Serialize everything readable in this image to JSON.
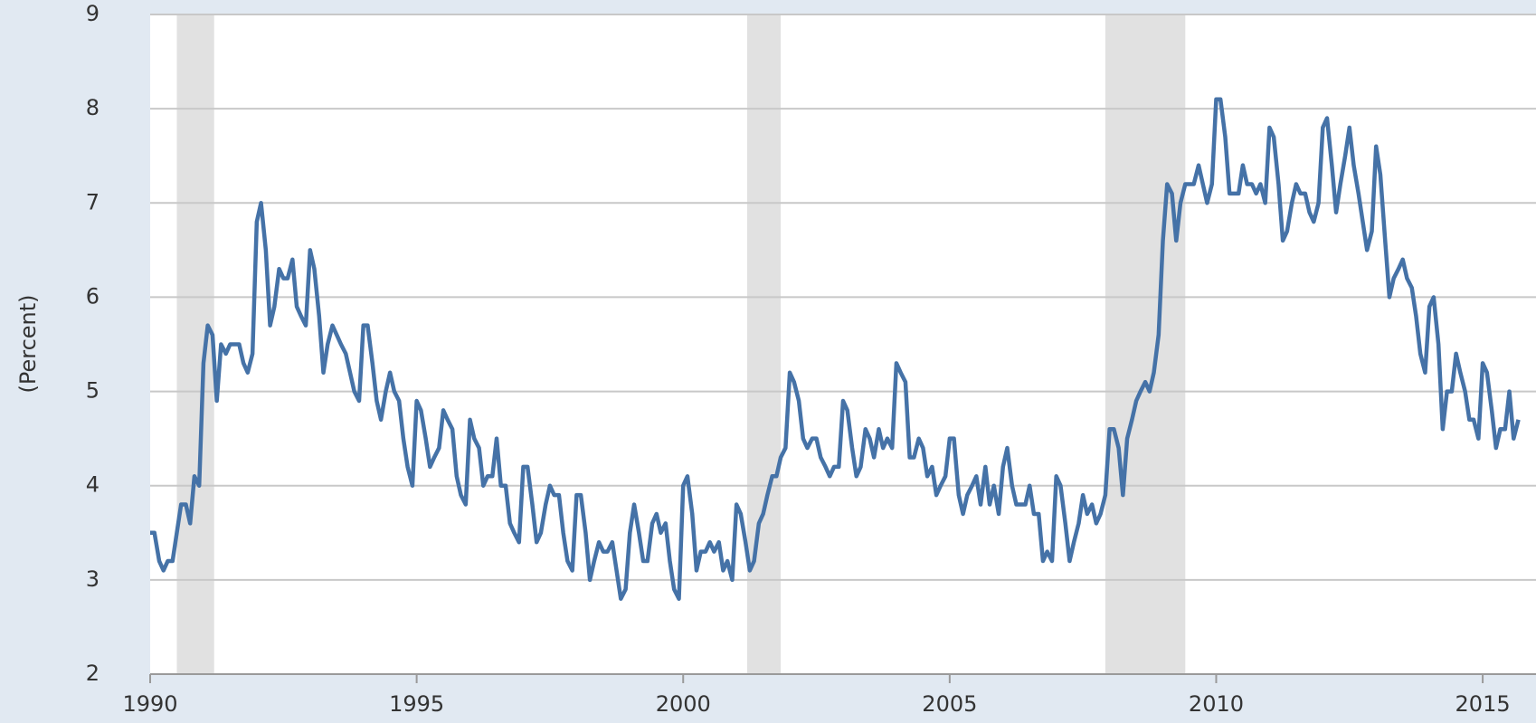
{
  "chart_data": {
    "type": "line",
    "ylabel": "(Percent)",
    "xlim": [
      1990,
      2016
    ],
    "xticks": [
      1990,
      1995,
      2000,
      2005,
      2010,
      2015
    ],
    "ylim": [
      2,
      9
    ],
    "yticks": [
      2,
      3,
      4,
      5,
      6,
      7,
      8,
      9
    ],
    "grid": true,
    "recessions": [
      [
        1990.5,
        1991.2
      ],
      [
        2001.2,
        2001.83
      ],
      [
        2007.92,
        2009.42
      ]
    ],
    "recession_color": "#e1e1e1",
    "series": [
      {
        "color": "#4572a7",
        "x": [
          1990.0,
          1990.08,
          1990.17,
          1990.25,
          1990.33,
          1990.42,
          1990.5,
          1990.58,
          1990.67,
          1990.75,
          1990.83,
          1990.92,
          1991.0,
          1991.08,
          1991.17,
          1991.25,
          1991.33,
          1991.42,
          1991.5,
          1991.58,
          1991.67,
          1991.75,
          1991.83,
          1991.92,
          1992.0,
          1992.08,
          1992.17,
          1992.25,
          1992.33,
          1992.42,
          1992.5,
          1992.58,
          1992.67,
          1992.75,
          1992.83,
          1992.92,
          1993.0,
          1993.08,
          1993.17,
          1993.25,
          1993.33,
          1993.42,
          1993.5,
          1993.58,
          1993.67,
          1993.75,
          1993.83,
          1993.92,
          1994.0,
          1994.08,
          1994.17,
          1994.25,
          1994.33,
          1994.42,
          1994.5,
          1994.58,
          1994.67,
          1994.75,
          1994.83,
          1994.92,
          1995.0,
          1995.08,
          1995.17,
          1995.25,
          1995.33,
          1995.42,
          1995.5,
          1995.58,
          1995.67,
          1995.75,
          1995.83,
          1995.92,
          1996.0,
          1996.08,
          1996.17,
          1996.25,
          1996.33,
          1996.42,
          1996.5,
          1996.58,
          1996.67,
          1996.75,
          1996.83,
          1996.92,
          1997.0,
          1997.08,
          1997.17,
          1997.25,
          1997.33,
          1997.42,
          1997.5,
          1997.58,
          1997.67,
          1997.75,
          1997.83,
          1997.92,
          1998.0,
          1998.08,
          1998.17,
          1998.25,
          1998.33,
          1998.42,
          1998.5,
          1998.58,
          1998.67,
          1998.75,
          1998.83,
          1998.92,
          1999.0,
          1999.08,
          1999.17,
          1999.25,
          1999.33,
          1999.42,
          1999.5,
          1999.58,
          1999.67,
          1999.75,
          1999.83,
          1999.92,
          2000.0,
          2000.08,
          2000.17,
          2000.25,
          2000.33,
          2000.42,
          2000.5,
          2000.58,
          2000.67,
          2000.75,
          2000.83,
          2000.92,
          2001.0,
          2001.08,
          2001.17,
          2001.25,
          2001.33,
          2001.42,
          2001.5,
          2001.58,
          2001.67,
          2001.75,
          2001.83,
          2001.92,
          2002.0,
          2002.08,
          2002.17,
          2002.25,
          2002.33,
          2002.42,
          2002.5,
          2002.58,
          2002.67,
          2002.75,
          2002.83,
          2002.92,
          2003.0,
          2003.08,
          2003.17,
          2003.25,
          2003.33,
          2003.42,
          2003.5,
          2003.58,
          2003.67,
          2003.75,
          2003.83,
          2003.92,
          2004.0,
          2004.08,
          2004.17,
          2004.25,
          2004.33,
          2004.42,
          2004.5,
          2004.58,
          2004.67,
          2004.75,
          2004.83,
          2004.92,
          2005.0,
          2005.08,
          2005.17,
          2005.25,
          2005.33,
          2005.42,
          2005.5,
          2005.58,
          2005.67,
          2005.75,
          2005.83,
          2005.92,
          2006.0,
          2006.08,
          2006.17,
          2006.25,
          2006.33,
          2006.42,
          2006.5,
          2006.58,
          2006.67,
          2006.75,
          2006.83,
          2006.92,
          2007.0,
          2007.08,
          2007.17,
          2007.25,
          2007.33,
          2007.42,
          2007.5,
          2007.58,
          2007.67,
          2007.75,
          2007.83,
          2007.92,
          2008.0,
          2008.08,
          2008.17,
          2008.25,
          2008.33,
          2008.42,
          2008.5,
          2008.58,
          2008.67,
          2008.75,
          2008.83,
          2008.92,
          2009.0,
          2009.08,
          2009.17,
          2009.25,
          2009.33,
          2009.42,
          2009.5,
          2009.58,
          2009.67,
          2009.75,
          2009.83,
          2009.92,
          2010.0,
          2010.08,
          2010.17,
          2010.25,
          2010.33,
          2010.42,
          2010.5,
          2010.58,
          2010.67,
          2010.75,
          2010.83,
          2010.92,
          2011.0,
          2011.08,
          2011.17,
          2011.25,
          2011.33,
          2011.42,
          2011.5,
          2011.58,
          2011.67,
          2011.75,
          2011.83,
          2011.92,
          2012.0,
          2012.08,
          2012.17,
          2012.25,
          2012.33,
          2012.42,
          2012.5,
          2012.58,
          2012.67,
          2012.75,
          2012.83,
          2012.92,
          2013.0,
          2013.08,
          2013.17,
          2013.25,
          2013.33,
          2013.42,
          2013.5,
          2013.58,
          2013.67,
          2013.75,
          2013.83,
          2013.92,
          2014.0,
          2014.08,
          2014.17,
          2014.25,
          2014.33,
          2014.42,
          2014.5,
          2014.58,
          2014.67,
          2014.75,
          2014.83,
          2014.92,
          2015.0,
          2015.08,
          2015.17,
          2015.25,
          2015.33,
          2015.42,
          2015.5,
          2015.58,
          2015.67
        ],
        "values": [
          3.5,
          3.5,
          3.2,
          3.1,
          3.2,
          3.2,
          3.5,
          3.8,
          3.8,
          3.6,
          4.1,
          4.0,
          5.3,
          5.7,
          5.6,
          4.9,
          5.5,
          5.4,
          5.5,
          5.5,
          5.5,
          5.3,
          5.2,
          5.4,
          6.8,
          7.0,
          6.5,
          5.7,
          5.9,
          6.3,
          6.2,
          6.2,
          6.4,
          5.9,
          5.8,
          5.7,
          6.5,
          6.3,
          5.8,
          5.2,
          5.5,
          5.7,
          5.6,
          5.5,
          5.4,
          5.2,
          5.0,
          4.9,
          5.7,
          5.7,
          5.3,
          4.9,
          4.7,
          5.0,
          5.2,
          5.0,
          4.9,
          4.5,
          4.2,
          4.0,
          4.9,
          4.8,
          4.5,
          4.2,
          4.3,
          4.4,
          4.8,
          4.7,
          4.6,
          4.1,
          3.9,
          3.8,
          4.7,
          4.5,
          4.4,
          4.0,
          4.1,
          4.1,
          4.5,
          4.0,
          4.0,
          3.6,
          3.5,
          3.4,
          4.2,
          4.2,
          3.8,
          3.4,
          3.5,
          3.8,
          4.0,
          3.9,
          3.9,
          3.5,
          3.2,
          3.1,
          3.9,
          3.9,
          3.5,
          3.0,
          3.2,
          3.4,
          3.3,
          3.3,
          3.4,
          3.1,
          2.8,
          2.9,
          3.5,
          3.8,
          3.5,
          3.2,
          3.2,
          3.6,
          3.7,
          3.5,
          3.6,
          3.2,
          2.9,
          2.8,
          4.0,
          4.1,
          3.7,
          3.1,
          3.3,
          3.3,
          3.4,
          3.3,
          3.4,
          3.1,
          3.2,
          3.0,
          3.8,
          3.7,
          3.4,
          3.1,
          3.2,
          3.6,
          3.7,
          3.9,
          4.1,
          4.1,
          4.3,
          4.4,
          5.2,
          5.1,
          4.9,
          4.5,
          4.4,
          4.5,
          4.5,
          4.3,
          4.2,
          4.1,
          4.2,
          4.2,
          4.9,
          4.8,
          4.4,
          4.1,
          4.2,
          4.6,
          4.5,
          4.3,
          4.6,
          4.4,
          4.5,
          4.4,
          5.3,
          5.2,
          5.1,
          4.3,
          4.3,
          4.5,
          4.4,
          4.1,
          4.2,
          3.9,
          4.0,
          4.1,
          4.5,
          4.5,
          3.9,
          3.7,
          3.9,
          4.0,
          4.1,
          3.8,
          4.2,
          3.8,
          4.0,
          3.7,
          4.2,
          4.4,
          4.0,
          3.8,
          3.8,
          3.8,
          4.0,
          3.7,
          3.7,
          3.2,
          3.3,
          3.2,
          4.1,
          4.0,
          3.6,
          3.2,
          3.4,
          3.6,
          3.9,
          3.7,
          3.8,
          3.6,
          3.7,
          3.9,
          4.6,
          4.6,
          4.4,
          3.9,
          4.5,
          4.7,
          4.9,
          5.0,
          5.1,
          5.0,
          5.2,
          5.6,
          6.6,
          7.2,
          7.1,
          6.6,
          7.0,
          7.2,
          7.2,
          7.2,
          7.4,
          7.2,
          7.0,
          7.2,
          8.1,
          8.1,
          7.7,
          7.1,
          7.1,
          7.1,
          7.4,
          7.2,
          7.2,
          7.1,
          7.2,
          7.0,
          7.8,
          7.7,
          7.2,
          6.6,
          6.7,
          7.0,
          7.2,
          7.1,
          7.1,
          6.9,
          6.8,
          7.0,
          7.8,
          7.9,
          7.4,
          6.9,
          7.2,
          7.5,
          7.8,
          7.4,
          7.1,
          6.8,
          6.5,
          6.7,
          7.6,
          7.3,
          6.6,
          6.0,
          6.2,
          6.3,
          6.4,
          6.2,
          6.1,
          5.8,
          5.4,
          5.2,
          5.9,
          6.0,
          5.5,
          4.6,
          5.0,
          5.0,
          5.4,
          5.2,
          5.0,
          4.7,
          4.7,
          4.5,
          5.3,
          5.2,
          4.8,
          4.4,
          4.6,
          4.6,
          5.0,
          4.5,
          4.7
        ]
      }
    ]
  }
}
